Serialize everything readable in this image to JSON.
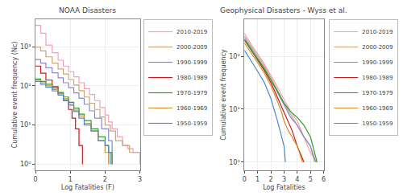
{
  "chart_data": [
    {
      "type": "step",
      "title": "NOAA Disasters",
      "x_label": "Log Fatalities (F)",
      "y_label": "Cumulative event frequency (Nc)",
      "series": [
        {
          "name": "2010-2019",
          "color": "#f0a0b8",
          "x": [
            0.0,
            0.15,
            0.3,
            0.48,
            0.65,
            0.8,
            0.95,
            1.1,
            1.25,
            1.4,
            1.55,
            1.7,
            1.85,
            2.0,
            2.1,
            2.2,
            2.35,
            2.5,
            2.65,
            2.8,
            3.0
          ],
          "values": [
            3500,
            2200,
            1100,
            700,
            450,
            320,
            230,
            170,
            120,
            85,
            60,
            42,
            28,
            18,
            12,
            8,
            5,
            3,
            2.5,
            2,
            1
          ]
        },
        {
          "name": "2000-2009",
          "color": "#c8a878",
          "x": [
            0.0,
            0.15,
            0.3,
            0.48,
            0.65,
            0.8,
            0.95,
            1.1,
            1.25,
            1.4,
            1.55,
            1.7,
            1.85,
            2.0,
            2.15,
            2.3,
            2.5,
            2.7,
            3.0
          ],
          "values": [
            980,
            780,
            550,
            380,
            270,
            200,
            145,
            105,
            75,
            52,
            36,
            25,
            16,
            10,
            7,
            4,
            3,
            2,
            1
          ]
        },
        {
          "name": "1990-1999",
          "color": "#8888cc",
          "x": [
            0.0,
            0.15,
            0.3,
            0.48,
            0.65,
            0.8,
            0.95,
            1.1,
            1.25,
            1.4,
            1.55,
            1.7,
            1.9,
            2.1,
            2.2
          ],
          "values": [
            470,
            380,
            290,
            215,
            160,
            120,
            90,
            66,
            48,
            34,
            23,
            15,
            8,
            4,
            1
          ]
        },
        {
          "name": "1980-1989",
          "color": "#cc1818",
          "x": [
            0.0,
            0.15,
            0.3,
            0.48,
            0.65,
            0.8,
            0.95,
            1.05,
            1.15,
            1.25,
            1.35
          ],
          "values": [
            320,
            210,
            140,
            95,
            65,
            42,
            25,
            15,
            8,
            3,
            1
          ]
        },
        {
          "name": "1970-1979",
          "color": "#28a028",
          "x": [
            0.0,
            0.15,
            0.3,
            0.48,
            0.65,
            0.8,
            0.95,
            1.1,
            1.25,
            1.4,
            1.6,
            1.8,
            2.0,
            2.1,
            2.2
          ],
          "values": [
            150,
            130,
            110,
            88,
            68,
            52,
            38,
            27,
            19,
            13,
            8,
            5,
            3,
            2,
            1
          ]
        },
        {
          "name": "1960-1969",
          "color": "#d4902a",
          "x": [
            0.0,
            0.15,
            0.3,
            0.48,
            0.65,
            0.8,
            0.95,
            1.1,
            1.25,
            1.4,
            1.6,
            1.8,
            2.0,
            2.1
          ],
          "values": [
            140,
            120,
            100,
            80,
            62,
            47,
            34,
            24,
            17,
            11,
            7,
            4,
            2,
            1
          ]
        },
        {
          "name": "1950-1959",
          "color": "#5088cc",
          "x": [
            0.0,
            0.15,
            0.3,
            0.48,
            0.65,
            0.8,
            0.95,
            1.1,
            1.25,
            1.4,
            1.6,
            1.8,
            2.0,
            2.1,
            2.15
          ],
          "values": [
            130,
            110,
            92,
            74,
            58,
            44,
            32,
            22,
            15,
            10,
            7,
            4,
            3,
            2,
            1
          ]
        }
      ],
      "xlim": [
        0,
        3
      ],
      "xticks": [
        0,
        1,
        2,
        3
      ],
      "ylim": [
        0.7,
        5000
      ],
      "yticks": [
        {
          "value": 1,
          "label": "10⁰"
        },
        {
          "value": 10,
          "label": "10¹"
        },
        {
          "value": 100,
          "label": "10²"
        },
        {
          "value": 1000,
          "label": "10³"
        }
      ],
      "log": "y",
      "grid": true,
      "legend": "right"
    },
    {
      "type": "line",
      "title": "Geophysical Disasters - Wyss et al.",
      "x_label": "Log Fatalities",
      "y_label": "Cumulative event frequency",
      "series": [
        {
          "name": "2010-2019",
          "color": "#f0a0b8",
          "x": [
            0.0,
            0.3,
            0.6,
            1.0,
            1.5,
            2.0,
            2.5,
            3.0,
            3.5,
            4.0,
            4.5,
            5.0,
            5.5
          ],
          "values": [
            270,
            200,
            155,
            112,
            72,
            44,
            26,
            15,
            9,
            6,
            3,
            1.5,
            1
          ]
        },
        {
          "name": "2000-2009",
          "color": "#c8a878",
          "x": [
            0.0,
            0.3,
            0.6,
            1.0,
            1.5,
            2.0,
            2.5,
            3.0,
            3.5,
            4.0,
            4.5,
            5.0,
            5.3
          ],
          "values": [
            240,
            185,
            142,
            102,
            66,
            40,
            23,
            13,
            8,
            5,
            3,
            2,
            1
          ]
        },
        {
          "name": "1990-1999",
          "color": "#8888cc",
          "x": [
            0.0,
            0.3,
            0.6,
            1.0,
            1.5,
            2.0,
            2.5,
            3.0,
            3.5,
            4.0,
            4.5,
            5.0,
            5.4
          ],
          "values": [
            220,
            170,
            130,
            94,
            60,
            36,
            21,
            12,
            7,
            5,
            3,
            2,
            1
          ]
        },
        {
          "name": "1980-1989",
          "color": "#cc1818",
          "x": [
            0.0,
            0.3,
            0.6,
            1.0,
            1.5,
            2.0,
            2.5,
            3.0,
            3.3,
            3.6,
            4.0,
            4.5
          ],
          "values": [
            205,
            158,
            120,
            86,
            54,
            32,
            17,
            9,
            6,
            4,
            2,
            1
          ]
        },
        {
          "name": "1970-1979",
          "color": "#28a028",
          "x": [
            0.0,
            0.3,
            0.6,
            1.0,
            1.5,
            2.0,
            2.5,
            3.0,
            3.5,
            4.0,
            4.5,
            5.0,
            5.5
          ],
          "values": [
            200,
            160,
            122,
            88,
            58,
            36,
            22,
            13,
            9,
            7,
            5,
            3,
            1
          ]
        },
        {
          "name": "1960-1969",
          "color": "#d4902a",
          "x": [
            0.0,
            0.3,
            0.6,
            1.0,
            1.5,
            2.0,
            2.5,
            2.8,
            3.0,
            3.3,
            3.6,
            4.0,
            4.4
          ],
          "values": [
            180,
            140,
            106,
            75,
            48,
            28,
            14,
            9,
            6,
            4,
            3,
            2,
            1
          ]
        },
        {
          "name": "1950-1959",
          "color": "#5088cc",
          "x": [
            0.0,
            0.3,
            0.6,
            1.0,
            1.5,
            2.0,
            2.5,
            2.9,
            3.0,
            3.1
          ],
          "values": [
            130,
            100,
            74,
            52,
            32,
            16,
            6,
            2.5,
            2,
            1
          ]
        }
      ],
      "xlim": [
        0,
        6
      ],
      "xticks": [
        0,
        1,
        2,
        3,
        4,
        5,
        6
      ],
      "ylim": [
        0.7,
        500
      ],
      "yticks": [
        {
          "value": 1,
          "label": "10⁰"
        },
        {
          "value": 10,
          "label": "10¹"
        },
        {
          "value": 100,
          "label": "10²"
        }
      ],
      "log": "y",
      "grid": true,
      "legend": "right"
    }
  ]
}
